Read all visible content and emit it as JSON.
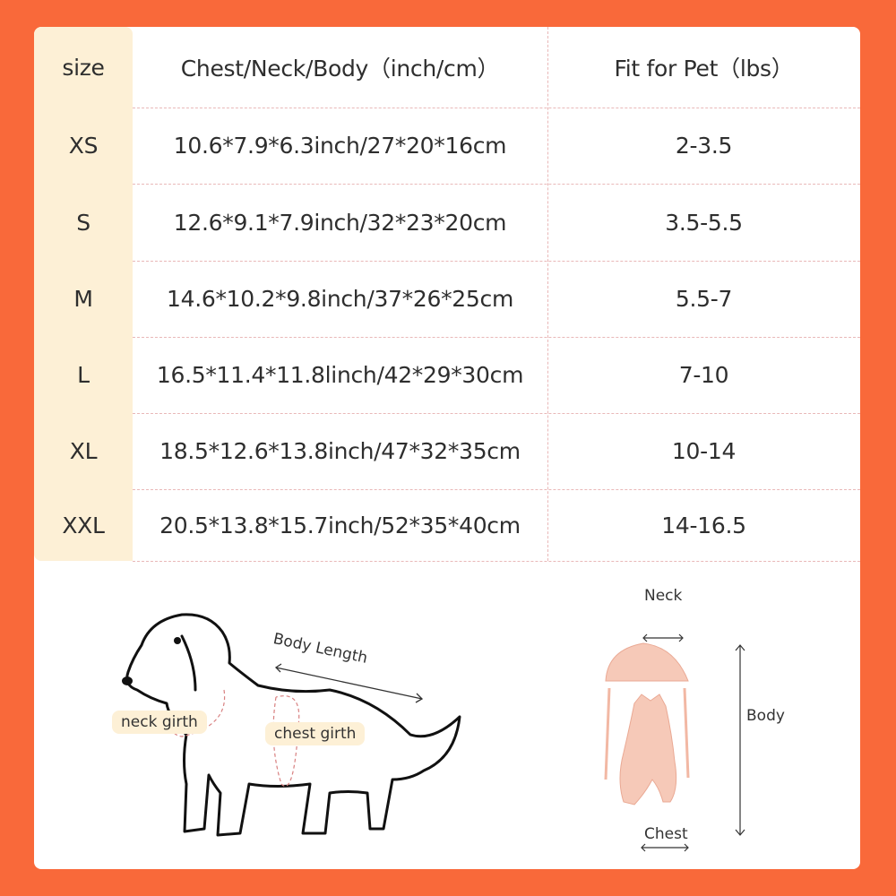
{
  "table": {
    "headers": [
      "size",
      "Chest/Neck/Body（inch/cm）",
      "Fit for Pet（lbs）"
    ],
    "rows": [
      {
        "size": "XS",
        "measure": "10.6*7.9*6.3inch/27*20*16cm",
        "fit": "2-3.5"
      },
      {
        "size": "S",
        "measure": "12.6*9.1*7.9inch/32*23*20cm",
        "fit": "3.5-5.5"
      },
      {
        "size": "M",
        "measure": "14.6*10.2*9.8inch/37*26*25cm",
        "fit": "5.5-7"
      },
      {
        "size": "L",
        "measure": "16.5*11.4*11.8linch/42*29*30cm",
        "fit": "7-10"
      },
      {
        "size": "XL",
        "measure": "18.5*12.6*13.8inch/47*32*35cm",
        "fit": "10-14"
      },
      {
        "size": "XXL",
        "measure": "20.5*13.8*15.7inch/52*35*40cm",
        "fit": "14-16.5"
      }
    ]
  },
  "dog_diagram": {
    "body_length": "Body Length",
    "neck_girth": "neck girth",
    "chest_girth": "chest girth"
  },
  "garment_diagram": {
    "neck": "Neck",
    "body": "Body",
    "chest": "Chest"
  },
  "colors": {
    "background": "#f9693a",
    "size_column": "#fdf0d6",
    "divider": "#e9b8b8",
    "garment": "#f6c9b8"
  }
}
